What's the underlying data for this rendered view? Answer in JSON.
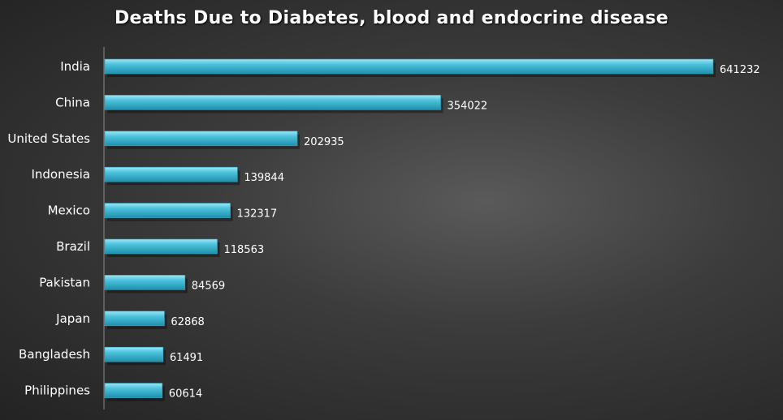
{
  "chart_data": {
    "type": "bar",
    "orientation": "horizontal",
    "title": "Deaths Due to Diabetes, blood and endocrine disease",
    "categories": [
      "India",
      "China",
      "United States",
      "Indonesia",
      "Mexico",
      "Brazil",
      "Pakistan",
      "Japan",
      "Bangladesh",
      "Philippines"
    ],
    "values": [
      641232,
      354022,
      202935,
      139844,
      132317,
      118563,
      84569,
      62868,
      61491,
      60614
    ],
    "xlim": [
      0,
      650000
    ],
    "grid": false,
    "legend": "none",
    "colors": {
      "bar": "#4cc3dd",
      "bar_dark": "#1f8fab",
      "text": "#ffffff"
    }
  }
}
